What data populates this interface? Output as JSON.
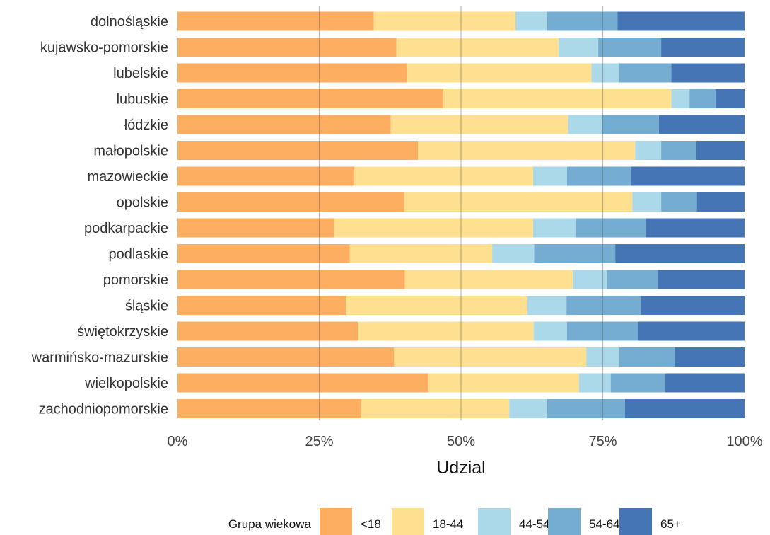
{
  "chart_data": {
    "type": "bar",
    "orientation": "horizontal",
    "stacked": "percent",
    "xlabel": "Udzial",
    "xlim": [
      0,
      100
    ],
    "xticks": [
      0,
      25,
      50,
      75,
      100
    ],
    "xtick_labels": [
      "0%",
      "25%",
      "50%",
      "75%",
      "100%"
    ],
    "grid": "vertical major lines",
    "legend": {
      "title": "Grupa wiekowa",
      "position": "bottom"
    },
    "categories": [
      "dolnośląskie",
      "kujawsko-pomorskie",
      "lubelskie",
      "lubuskie",
      "łódzkie",
      "małopolskie",
      "mazowieckie",
      "opolskie",
      "podkarpackie",
      "podlaskie",
      "pomorskie",
      "śląskie",
      "świętokrzyskie",
      "warmińsko-mazurskie",
      "wielkopolskie",
      "zachodniopomorskie"
    ],
    "series": [
      {
        "name": "<18",
        "color": "#FDAE61",
        "values": [
          34.6,
          38.6,
          40.5,
          46.9,
          37.6,
          42.4,
          31.2,
          40.0,
          27.6,
          30.4,
          40.1,
          29.7,
          31.8,
          38.2,
          44.3,
          32.4
        ]
      },
      {
        "name": "18-44",
        "color": "#FEE090",
        "values": [
          25.0,
          28.6,
          32.5,
          40.2,
          31.3,
          38.3,
          31.5,
          40.2,
          35.1,
          25.1,
          29.6,
          32.0,
          31.0,
          33.9,
          26.5,
          26.1
        ]
      },
      {
        "name": "44-54",
        "color": "#ABD9E9",
        "values": [
          5.6,
          7.0,
          4.9,
          3.2,
          5.9,
          4.6,
          6.0,
          5.1,
          7.6,
          7.4,
          6.0,
          6.9,
          5.9,
          5.8,
          5.6,
          6.7
        ]
      },
      {
        "name": "54-64",
        "color": "#74ADD1",
        "values": [
          12.4,
          11.1,
          9.2,
          4.6,
          10.1,
          6.2,
          11.2,
          6.3,
          12.3,
          14.3,
          9.0,
          13.1,
          12.5,
          9.8,
          9.6,
          13.7
        ]
      },
      {
        "name": "65+",
        "color": "#4575B4",
        "values": [
          22.4,
          14.7,
          12.9,
          5.1,
          15.1,
          8.5,
          20.1,
          8.4,
          17.4,
          22.8,
          15.3,
          18.3,
          18.8,
          12.3,
          14.0,
          21.1
        ]
      }
    ]
  }
}
